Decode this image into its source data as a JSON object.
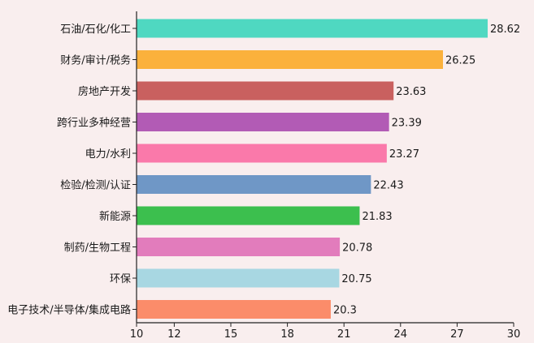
{
  "chart_data": {
    "type": "bar",
    "orientation": "horizontal",
    "title": "",
    "xlabel": "",
    "ylabel": "",
    "xlim": [
      10,
      30
    ],
    "xticks": [
      10,
      12,
      15,
      18,
      21,
      24,
      27,
      30
    ],
    "grid": false,
    "categories": [
      "石油/石化/化工",
      "财务/审计/税务",
      "房地产开发",
      "跨行业多种经营",
      "电力/水利",
      "检验/检测/认证",
      "新能源",
      "制药/生物工程",
      "环保",
      "电子技术/半导体/集成电路"
    ],
    "values": [
      28.62,
      26.25,
      23.63,
      23.39,
      23.27,
      22.43,
      21.83,
      20.78,
      20.75,
      20.3
    ],
    "value_labels": [
      "28.62",
      "26.25",
      "23.63",
      "23.39",
      "23.27",
      "22.43",
      "21.83",
      "20.78",
      "20.75",
      "20.3"
    ],
    "colors": [
      "#4fd8c1",
      "#fbb13c",
      "#c9605f",
      "#b25bb5",
      "#fa79aa",
      "#6f97c6",
      "#3cbf4e",
      "#e27cbc",
      "#a8d7e2",
      "#fb8c6a"
    ]
  }
}
